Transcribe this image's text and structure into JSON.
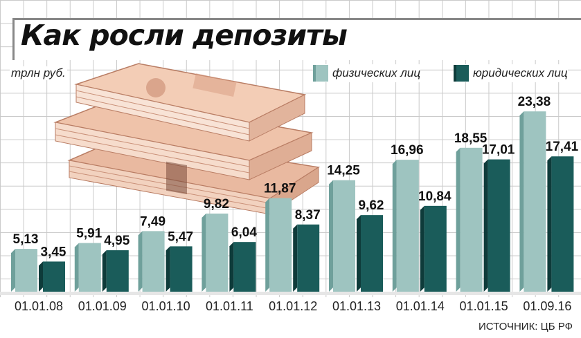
{
  "title": "Как росли депозиты",
  "unit_label": "трлн руб.",
  "source": "ИСТОЧНИК: ЦБ РФ",
  "colors": {
    "individuals": "#9ec4c0",
    "legal": "#1a5c5a"
  },
  "chart_data": {
    "type": "bar",
    "title": "Как росли депозиты",
    "ylabel": "трлн руб.",
    "xlabel": "",
    "categories": [
      "01.01.08",
      "01.01.09",
      "01.01.10",
      "01.01.11",
      "01.01.12",
      "01.01.13",
      "01.01.14",
      "01.01.15",
      "01.09.16"
    ],
    "series": [
      {
        "name": "физических лиц",
        "values": [
          5.13,
          5.91,
          7.49,
          9.82,
          11.87,
          14.25,
          16.96,
          18.55,
          23.38
        ],
        "labels": [
          "5,13",
          "5,91",
          "7,49",
          "9,82",
          "11,87",
          "14,25",
          "16,96",
          "18,55",
          "23,38"
        ]
      },
      {
        "name": "юридических лиц",
        "values": [
          3.45,
          4.95,
          5.47,
          6.04,
          8.37,
          9.62,
          10.84,
          17.01,
          17.41
        ],
        "labels": [
          "3,45",
          "4,95",
          "5,47",
          "6,04",
          "8,37",
          "9,62",
          "10,84",
          "17,01",
          "17,41"
        ]
      }
    ],
    "ylim": [
      0,
      25
    ],
    "grid": true,
    "legend": "top-right"
  }
}
